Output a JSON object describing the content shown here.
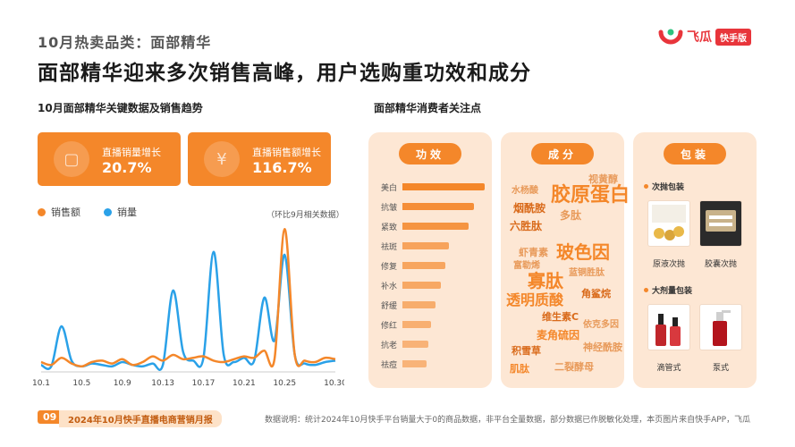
{
  "header": {
    "category": "10月热卖品类：面部精华",
    "headline": "面部精华迎来多次销售高峰，用户选购重功效和成分",
    "logo_text": "飞瓜",
    "logo_tag": "快手版"
  },
  "left": {
    "section_title": "10月面部精华关键数据及销售趋势",
    "kpis": [
      {
        "label": "直播销量增长",
        "value": "20.7%",
        "icon": "box-icon"
      },
      {
        "label": "直播销售额增长",
        "value": "116.7%",
        "icon": "yen-icon"
      }
    ],
    "legend": [
      {
        "name": "销售额",
        "color": "#f4872a"
      },
      {
        "name": "销量",
        "color": "#2aa1e8"
      }
    ],
    "note": "（环比9月相关数据）"
  },
  "chart_data": {
    "type": "line",
    "x_ticks": [
      "10.1",
      "10.5",
      "10.9",
      "10.13",
      "10.17",
      "10.21",
      "10.25",
      "10.30"
    ],
    "x": [
      1,
      2,
      3,
      4,
      5,
      6,
      7,
      8,
      9,
      10,
      11,
      12,
      13,
      14,
      15,
      16,
      17,
      18,
      19,
      20,
      21,
      22,
      23,
      24,
      25,
      26,
      27,
      28,
      29,
      30
    ],
    "ylim": [
      0,
      100
    ],
    "series": [
      {
        "name": "销售额",
        "color": "#f4872a",
        "values": [
          5,
          3,
          8,
          4,
          2,
          5,
          6,
          4,
          7,
          3,
          5,
          9,
          6,
          10,
          7,
          8,
          9,
          6,
          5,
          7,
          9,
          8,
          13,
          7,
          98,
          10,
          6,
          5,
          8,
          7
        ]
      },
      {
        "name": "销量",
        "color": "#2aa1e8",
        "values": [
          3,
          2,
          30,
          6,
          2,
          4,
          3,
          2,
          5,
          3,
          2,
          4,
          3,
          55,
          12,
          6,
          8,
          82,
          10,
          5,
          8,
          6,
          50,
          20,
          80,
          10,
          4,
          3,
          5,
          6
        ]
      }
    ]
  },
  "right": {
    "section_title": "面部精华消费者关注点",
    "panels": {
      "efficacy": {
        "title": "功效",
        "bars": [
          {
            "label": "美白",
            "value": 100
          },
          {
            "label": "抗皱",
            "value": 87
          },
          {
            "label": "紧致",
            "value": 80
          },
          {
            "label": "祛斑",
            "value": 56
          },
          {
            "label": "修复",
            "value": 52
          },
          {
            "label": "补水",
            "value": 47
          },
          {
            "label": "舒缓",
            "value": 40
          },
          {
            "label": "修红",
            "value": 35
          },
          {
            "label": "抗老",
            "value": 31
          },
          {
            "label": "祛痘",
            "value": 29
          }
        ]
      },
      "ingredients": {
        "title": "成分",
        "words": [
          "胶原蛋白",
          "玻色因",
          "透明质酸",
          "烟酰胺",
          "六胜肽",
          "寡肽",
          "多肽",
          "维生素C",
          "麦角硫因",
          "虾青素",
          "视黄醇",
          "水杨酸",
          "角鲨烷",
          "神经酰胺",
          "富勒烯",
          "二裂酵母",
          "积雪草",
          "依克多因",
          "肌肽",
          "蓝铜胜肽"
        ]
      },
      "packaging": {
        "title": "包装",
        "groups": [
          {
            "title": "次抛包装",
            "items": [
              {
                "caption": "原液次抛"
              },
              {
                "caption": "胶囊次抛"
              }
            ]
          },
          {
            "title": "大剂量包装",
            "items": [
              {
                "caption": "滴管式"
              },
              {
                "caption": "泵式"
              }
            ]
          }
        ]
      }
    }
  },
  "footer": {
    "page_number": "09",
    "report_title": "2024年10月快手直播电商营销月报",
    "source": "数据说明：统计2024年10月快手平台销量大于0的商品数据，非平台全量数据，部分数据已作脱敏化处理，本页图片来自快手APP，飞瓜"
  }
}
